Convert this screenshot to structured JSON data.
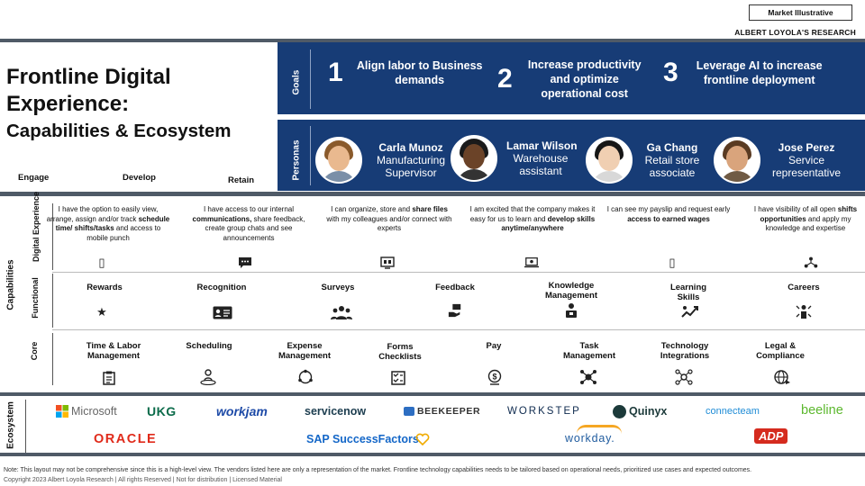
{
  "header": {
    "tag": "Market Illustrative",
    "research": "ALBERT LOYOLA'S RESEARCH"
  },
  "title": {
    "line1": "Frontline Digital",
    "line2": "Experience:",
    "line3": "Capabilities & Ecosystem"
  },
  "stages": [
    "Engage",
    "Develop",
    "Retain"
  ],
  "goals": {
    "label": "Goals",
    "items": [
      {
        "num": "1",
        "text": "Align labor to Business demands"
      },
      {
        "num": "2",
        "text": "Increase productivity and optimize operational cost"
      },
      {
        "num": "3",
        "text": "Leverage AI to increase frontline deployment"
      }
    ]
  },
  "personas": {
    "label": "Personas",
    "items": [
      {
        "name": "Carla Munoz",
        "role": "Manufacturing Supervisor"
      },
      {
        "name": "Lamar Wilson",
        "role": "Warehouse assistant"
      },
      {
        "name": "Ga Chang",
        "role": "Retail store associate"
      },
      {
        "name": "Jose Perez",
        "role": "Service representative"
      }
    ]
  },
  "capabilities": {
    "label": "Capabilities",
    "digital_label": "Digital Experience",
    "functional_label": "Functional",
    "core_label": "Core",
    "digital": [
      {
        "a": "I have the option to easily view, arrange, assign and/or track ",
        "b": "schedule time/ shifts/tasks",
        "c": " and access to mobile punch"
      },
      {
        "a": "I have access to our internal ",
        "b": "communications,",
        "c": " share feedback, create group chats and see announcements"
      },
      {
        "a": "I can organize, store and ",
        "b": "share files",
        "c": " with my colleagues and/or connect with experts"
      },
      {
        "a": "I am excited that the company makes it easy for us to learn and ",
        "b": "develop skills anytime/anywhere",
        "c": ""
      },
      {
        "a": "I can see my payslip and request early ",
        "b": "access to earned wages",
        "c": ""
      },
      {
        "a": "I have visibility of all open ",
        "b": "shifts opportunities",
        "c": " and apply my knowledge and expertise"
      }
    ],
    "functional": [
      "Rewards",
      "Recognition",
      "Surveys",
      "Feedback",
      "Knowledge Management",
      "Learning Skills",
      "Careers"
    ],
    "core": [
      "Time & Labor Management",
      "Scheduling",
      "Expense Management",
      "Forms Checklists",
      "Pay",
      "Task Management",
      "Technology Integrations",
      "Legal & Compliance"
    ]
  },
  "ecosystem": {
    "label": "Ecosystem",
    "row1": [
      "Microsoft",
      "UKG",
      "workjam",
      "servicenow",
      "BEEKEEPER",
      "WORKSTEP",
      "Quinyx",
      "connecteam",
      "beeline"
    ],
    "row2": [
      "ORACLE",
      "SAP SuccessFactors",
      "workday.",
      "ADP"
    ]
  },
  "footer": {
    "note": "Note: This layout  may not be comprehensive since this is a high-level view. The vendors listed here are only a representation of the market. Frontline technology capabilities needs to be tailored based on operational needs, prioritized use cases and expected outcomes.",
    "copyright": "Copyright 2023 Albert Loyola Research | All rights Reserved | Not for distribution | Licensed Material"
  },
  "colors": {
    "navy": "#173c76",
    "bar": "#4f5a67"
  }
}
